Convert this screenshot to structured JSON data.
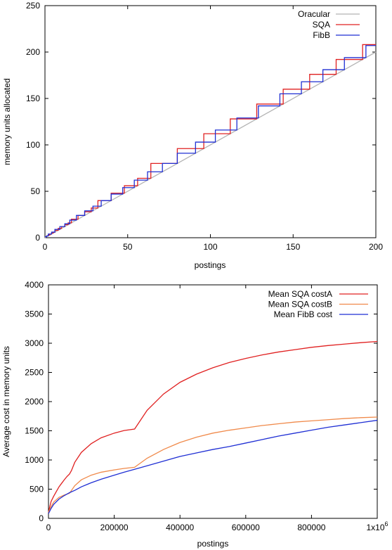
{
  "chart_data": [
    {
      "type": "line",
      "title": "",
      "xlabel": "postings",
      "ylabel": "memory units allocated",
      "xlim": [
        0,
        200
      ],
      "ylim": [
        0,
        250
      ],
      "xticks": [
        0,
        50,
        100,
        150,
        200
      ],
      "yticks": [
        0,
        50,
        100,
        150,
        200,
        250
      ],
      "xtick_labels": [
        "0",
        "50",
        "100",
        "150",
        "200"
      ],
      "ytick_labels": [
        "0",
        "50",
        "100",
        "150",
        "200",
        "250"
      ],
      "grid": false,
      "legend_position": "top-right",
      "series": [
        {
          "name": "Oracular",
          "color": "#b4b4b4",
          "shape": "line",
          "x": [
            0,
            200
          ],
          "y": [
            0,
            200
          ]
        },
        {
          "name": "SQA",
          "color": "#e02020",
          "shape": "step",
          "x": [
            0,
            1,
            2,
            3,
            4,
            5,
            6,
            8,
            10,
            12,
            14,
            16,
            20,
            24,
            28,
            32,
            40,
            48,
            56,
            64,
            80,
            96,
            112,
            128,
            144,
            160,
            176,
            192,
            200
          ],
          "y": [
            1,
            2,
            3,
            4,
            5,
            6,
            8,
            10,
            12,
            14,
            16,
            20,
            24,
            28,
            32,
            40,
            48,
            56,
            64,
            80,
            96,
            112,
            128,
            144,
            160,
            176,
            192,
            208,
            208
          ]
        },
        {
          "name": "FibB",
          "color": "#1f2fd4",
          "shape": "step",
          "x": [
            0,
            1,
            2,
            4,
            6,
            9,
            12,
            15,
            19,
            24,
            29,
            34,
            40,
            47,
            54,
            62,
            71,
            80,
            91,
            103,
            116,
            129,
            142,
            155,
            168,
            181,
            194,
            200
          ],
          "y": [
            1,
            2,
            4,
            6,
            9,
            12,
            15,
            19,
            24,
            29,
            34,
            40,
            47,
            54,
            62,
            71,
            80,
            91,
            103,
            116,
            129,
            142,
            155,
            168,
            181,
            194,
            207,
            207
          ]
        }
      ]
    },
    {
      "type": "line",
      "title": "",
      "xlabel": "postings",
      "ylabel": "Average cost in memory units",
      "xlim": [
        0,
        1000000
      ],
      "ylim": [
        0,
        4000
      ],
      "xticks": [
        0,
        200000,
        400000,
        600000,
        800000,
        1000000
      ],
      "yticks": [
        0,
        500,
        1000,
        1500,
        2000,
        2500,
        3000,
        3500,
        4000
      ],
      "xtick_labels": [
        "0",
        "200000",
        "400000",
        "600000",
        "800000",
        "1x10"
      ],
      "xtick_exponent": "6",
      "ytick_labels": [
        "0",
        "500",
        "1000",
        "1500",
        "2000",
        "2500",
        "3000",
        "3500",
        "4000"
      ],
      "grid": false,
      "legend_position": "top-right",
      "series": [
        {
          "name": "Mean SQA costA",
          "color": "#e02020",
          "x": [
            0,
            4000,
            8000,
            16000,
            24000,
            32000,
            40000,
            48000,
            56000,
            64000,
            70000,
            80000,
            100000,
            130000,
            160000,
            200000,
            230000,
            262000,
            300000,
            350000,
            400000,
            450000,
            500000,
            550000,
            600000,
            650000,
            700000,
            750000,
            800000,
            850000,
            900000,
            950000,
            1000000
          ],
          "y": [
            100,
            200,
            290,
            380,
            460,
            540,
            600,
            660,
            715,
            760,
            820,
            960,
            1130,
            1280,
            1380,
            1460,
            1505,
            1530,
            1850,
            2130,
            2330,
            2470,
            2580,
            2670,
            2740,
            2800,
            2850,
            2890,
            2930,
            2960,
            2985,
            3010,
            3030
          ]
        },
        {
          "name": "Mean SQA costB",
          "color": "#f08a4b",
          "x": [
            0,
            8000,
            16000,
            32000,
            48000,
            64000,
            80000,
            100000,
            130000,
            160000,
            200000,
            230000,
            262000,
            300000,
            350000,
            400000,
            450000,
            500000,
            550000,
            600000,
            650000,
            700000,
            750000,
            800000,
            850000,
            900000,
            950000,
            1000000
          ],
          "y": [
            100,
            200,
            280,
            360,
            400,
            430,
            560,
            660,
            740,
            790,
            830,
            855,
            875,
            1030,
            1180,
            1300,
            1390,
            1460,
            1510,
            1550,
            1590,
            1620,
            1650,
            1670,
            1690,
            1710,
            1725,
            1735
          ]
        },
        {
          "name": "Mean FibB cost",
          "color": "#1f2fd4",
          "x": [
            0,
            8000,
            16000,
            32000,
            48000,
            64000,
            80000,
            100000,
            130000,
            160000,
            200000,
            230000,
            262000,
            300000,
            350000,
            400000,
            450000,
            500000,
            550000,
            600000,
            650000,
            700000,
            750000,
            800000,
            850000,
            900000,
            950000,
            1000000
          ],
          "y": [
            80,
            170,
            240,
            330,
            390,
            440,
            480,
            540,
            610,
            670,
            740,
            790,
            840,
            900,
            980,
            1060,
            1120,
            1180,
            1230,
            1290,
            1350,
            1410,
            1460,
            1510,
            1560,
            1600,
            1640,
            1680
          ]
        }
      ]
    }
  ]
}
